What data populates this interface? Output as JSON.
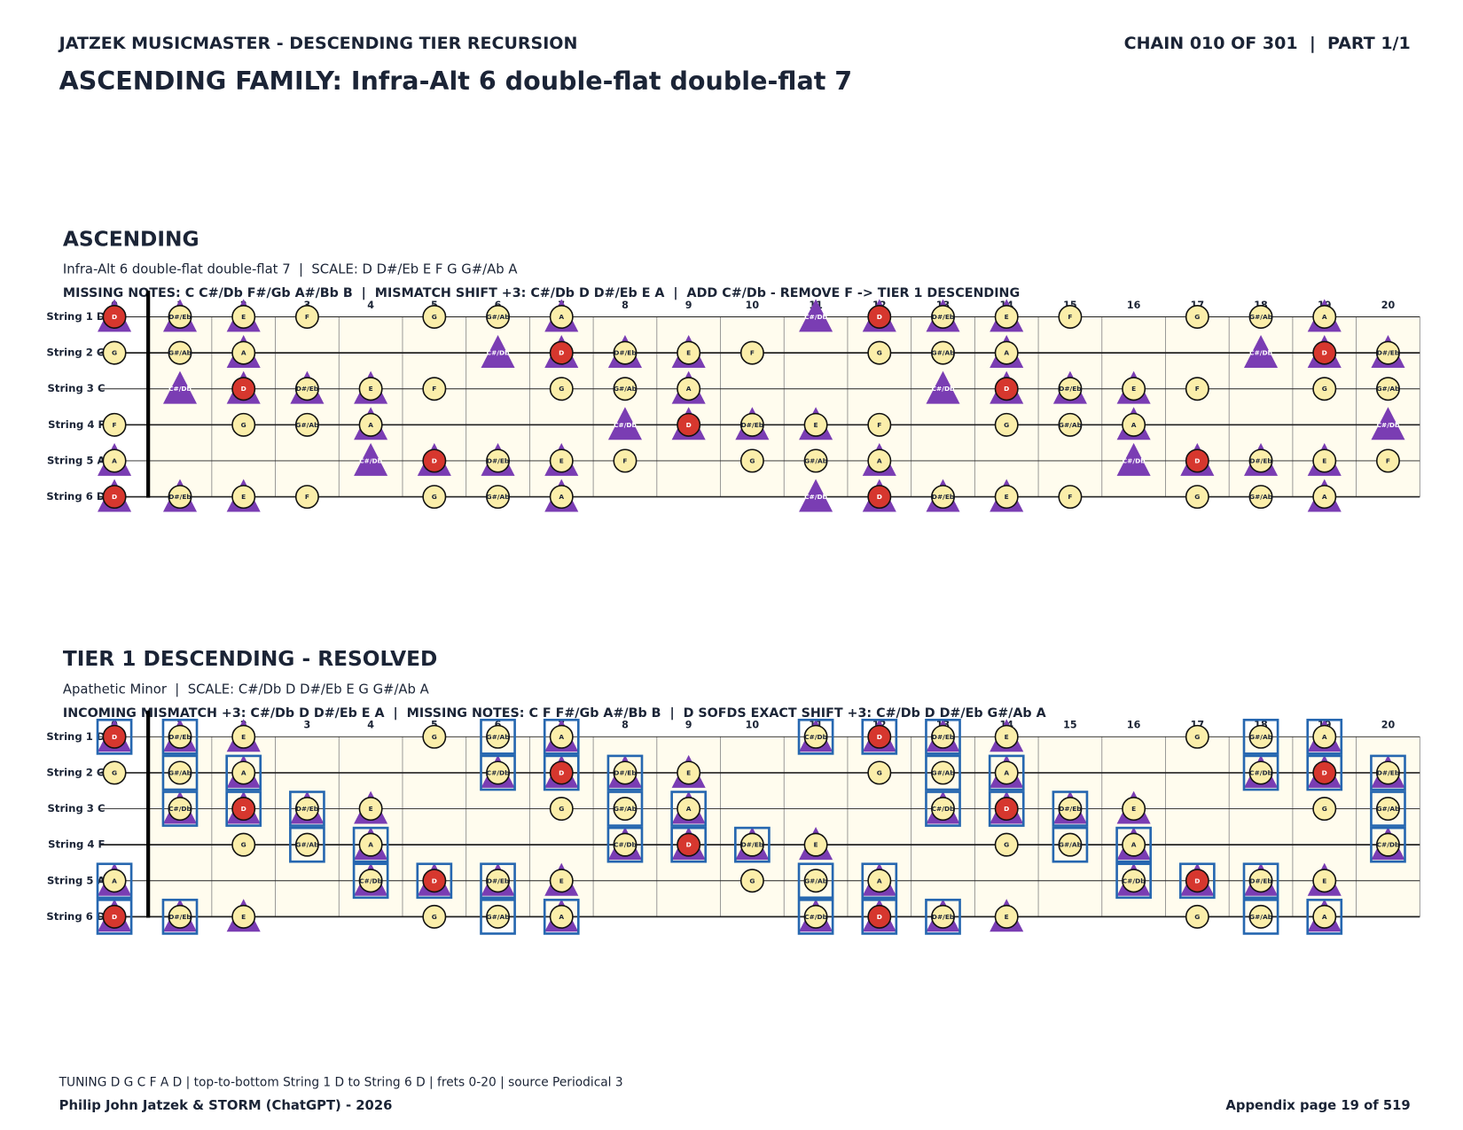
{
  "header": {
    "left": "JATZEK MUSICMASTER - DESCENDING TIER RECURSION",
    "right": "CHAIN 010 OF 301  |  PART 1/1",
    "title": "ASCENDING FAMILY: Infra-Alt 6 double-flat double-flat 7"
  },
  "sections": [
    {
      "title": "ASCENDING",
      "subtitle": "Infra-Alt 6 double-flat double-flat 7  |  SCALE: D D#/Eb E F G G#/Ab A",
      "info": "MISSING NOTES: C C#/Db F#/Gb A#/Bb B  |  MISMATCH SHIFT +3: C#/Db D D#/Eb E A  |  ADD C#/Db - REMOVE F -> TIER 1 DESCENDING",
      "frets": [
        0,
        1,
        2,
        3,
        4,
        5,
        6,
        7,
        8,
        9,
        10,
        11,
        12,
        13,
        14,
        15,
        16,
        17,
        18,
        19,
        20
      ],
      "strings": [
        {
          "label": "String 1 D",
          "notes": [
            "D",
            "D#/Eb",
            "E",
            "F",
            null,
            "G",
            "G#/Ab",
            "A",
            null,
            null,
            null,
            "C#/Db",
            "D",
            "D#/Eb",
            "E",
            "F",
            null,
            "G",
            "G#/Ab",
            "A",
            null
          ],
          "marks": [
            "rt",
            "ct",
            "ct",
            "c",
            null,
            "c",
            "c",
            "ct",
            null,
            null,
            null,
            "t",
            "rt",
            "ct",
            "ct",
            "c",
            null,
            "c",
            "c",
            "ct",
            null
          ]
        },
        {
          "label": "String 2 G",
          "notes": [
            "G",
            "G#/Ab",
            "A",
            null,
            null,
            null,
            "C#/Db",
            "D",
            "D#/Eb",
            "E",
            "F",
            null,
            "G",
            "G#/Ab",
            "A",
            null,
            null,
            null,
            "C#/Db",
            "D",
            "D#/Eb"
          ],
          "marks": [
            "c",
            "c",
            "ct",
            null,
            null,
            null,
            "t",
            "rt",
            "ct",
            "ct",
            "c",
            null,
            "c",
            "c",
            "ct",
            null,
            null,
            null,
            "t",
            "rt",
            "ct"
          ]
        },
        {
          "label": "String 3 C",
          "notes": [
            null,
            "C#/Db",
            "D",
            "D#/Eb",
            "E",
            "F",
            null,
            "G",
            "G#/Ab",
            "A",
            null,
            null,
            null,
            "C#/Db",
            "D",
            "D#/Eb",
            "E",
            "F",
            null,
            "G",
            "G#/Ab"
          ],
          "marks": [
            null,
            "t",
            "rt",
            "ct",
            "ct",
            "c",
            null,
            "c",
            "c",
            "ct",
            null,
            null,
            null,
            "t",
            "rt",
            "ct",
            "ct",
            "c",
            null,
            "c",
            "c"
          ]
        },
        {
          "label": "String 4 F",
          "notes": [
            "F",
            null,
            "G",
            "G#/Ab",
            "A",
            null,
            null,
            null,
            "C#/Db",
            "D",
            "D#/Eb",
            "E",
            "F",
            null,
            "G",
            "G#/Ab",
            "A",
            null,
            null,
            null,
            "C#/Db"
          ],
          "marks": [
            "c",
            null,
            "c",
            "c",
            "ct",
            null,
            null,
            null,
            "t",
            "rt",
            "ct",
            "ct",
            "c",
            null,
            "c",
            "c",
            "ct",
            null,
            null,
            null,
            "t"
          ]
        },
        {
          "label": "String 5 A",
          "notes": [
            "A",
            null,
            null,
            null,
            "C#/Db",
            "D",
            "D#/Eb",
            "E",
            "F",
            null,
            "G",
            "G#/Ab",
            "A",
            null,
            null,
            null,
            "C#/Db",
            "D",
            "D#/Eb",
            "E",
            "F"
          ],
          "marks": [
            "ct",
            null,
            null,
            null,
            "t",
            "rt",
            "ct",
            "ct",
            "c",
            null,
            "c",
            "c",
            "ct",
            null,
            null,
            null,
            "t",
            "rt",
            "ct",
            "ct",
            "c"
          ]
        },
        {
          "label": "String 6 D",
          "notes": [
            "D",
            "D#/Eb",
            "E",
            "F",
            null,
            "G",
            "G#/Ab",
            "A",
            null,
            null,
            null,
            "C#/Db",
            "D",
            "D#/Eb",
            "E",
            "F",
            null,
            "G",
            "G#/Ab",
            "A",
            null
          ],
          "marks": [
            "rt",
            "ct",
            "ct",
            "c",
            null,
            "c",
            "c",
            "ct",
            null,
            null,
            null,
            "t",
            "rt",
            "ct",
            "ct",
            "c",
            null,
            "c",
            "c",
            "ct",
            null
          ]
        }
      ]
    },
    {
      "title": "TIER 1 DESCENDING - RESOLVED",
      "subtitle": "Apathetic Minor  |  SCALE: C#/Db D D#/Eb E G G#/Ab A",
      "info": "INCOMING MISMATCH +3: C#/Db D D#/Eb E A  |  MISSING NOTES: C F F#/Gb A#/Bb B  |  D SOFDS EXACT SHIFT +3: C#/Db D D#/Eb G#/Ab A",
      "frets": [
        0,
        1,
        2,
        3,
        4,
        5,
        6,
        7,
        8,
        9,
        10,
        11,
        12,
        13,
        14,
        15,
        16,
        17,
        18,
        19,
        20
      ],
      "strings": [
        {
          "label": "String 1 D",
          "notes": [
            "D",
            "D#/Eb",
            "E",
            null,
            null,
            "G",
            "G#/Ab",
            "A",
            null,
            null,
            null,
            "C#/Db",
            "D",
            "D#/Eb",
            "E",
            null,
            null,
            "G",
            "G#/Ab",
            "A",
            null
          ],
          "marks": [
            "rtb",
            "ctb",
            "ct",
            null,
            null,
            "c",
            "cb",
            "ctb",
            null,
            null,
            null,
            "ctb",
            "rtb",
            "ctb",
            "ct",
            null,
            null,
            "c",
            "cb",
            "ctb",
            null
          ]
        },
        {
          "label": "String 2 G",
          "notes": [
            "G",
            "G#/Ab",
            "A",
            null,
            null,
            null,
            "C#/Db",
            "D",
            "D#/Eb",
            "E",
            null,
            null,
            "G",
            "G#/Ab",
            "A",
            null,
            null,
            null,
            "C#/Db",
            "D",
            "D#/Eb"
          ],
          "marks": [
            "c",
            "cb",
            "ctb",
            null,
            null,
            null,
            "ctb",
            "rtb",
            "ctb",
            "ct",
            null,
            null,
            "c",
            "cb",
            "ctb",
            null,
            null,
            null,
            "ctb",
            "rtb",
            "ctb"
          ]
        },
        {
          "label": "String 3 C",
          "notes": [
            null,
            "C#/Db",
            "D",
            "D#/Eb",
            "E",
            null,
            null,
            "G",
            "G#/Ab",
            "A",
            null,
            null,
            null,
            "C#/Db",
            "D",
            "D#/Eb",
            "E",
            null,
            null,
            "G",
            "G#/Ab"
          ],
          "marks": [
            null,
            "ctb",
            "rtb",
            "ctb",
            "ct",
            null,
            null,
            "c",
            "cb",
            "ctb",
            null,
            null,
            null,
            "ctb",
            "rtb",
            "ctb",
            "ct",
            null,
            null,
            "c",
            "cb"
          ]
        },
        {
          "label": "String 4 F",
          "notes": [
            null,
            null,
            "G",
            "G#/Ab",
            "A",
            null,
            null,
            null,
            "C#/Db",
            "D",
            "D#/Eb",
            "E",
            null,
            null,
            "G",
            "G#/Ab",
            "A",
            null,
            null,
            null,
            "C#/Db"
          ],
          "marks": [
            null,
            null,
            "c",
            "cb",
            "ctb",
            null,
            null,
            null,
            "ctb",
            "rtb",
            "ctb",
            "ct",
            null,
            null,
            "c",
            "cb",
            "ctb",
            null,
            null,
            null,
            "ctb"
          ]
        },
        {
          "label": "String 5 A",
          "notes": [
            "A",
            null,
            null,
            null,
            "C#/Db",
            "D",
            "D#/Eb",
            "E",
            null,
            null,
            "G",
            "G#/Ab",
            "A",
            null,
            null,
            null,
            "C#/Db",
            "D",
            "D#/Eb",
            "E",
            null
          ],
          "marks": [
            "ctb",
            null,
            null,
            null,
            "ctb",
            "rtb",
            "ctb",
            "ct",
            null,
            null,
            "c",
            "cb",
            "ctb",
            null,
            null,
            null,
            "ctb",
            "rtb",
            "ctb",
            "ct",
            null
          ]
        },
        {
          "label": "String 6 D",
          "notes": [
            "D",
            "D#/Eb",
            "E",
            null,
            null,
            "G",
            "G#/Ab",
            "A",
            null,
            null,
            null,
            "C#/Db",
            "D",
            "D#/Eb",
            "E",
            null,
            null,
            "G",
            "G#/Ab",
            "A",
            null
          ],
          "marks": [
            "rtb",
            "ctb",
            "ct",
            null,
            null,
            "c",
            "cb",
            "ctb",
            null,
            null,
            null,
            "ctb",
            "rtb",
            "ctb",
            "ct",
            null,
            null,
            "c",
            "cb",
            "ctb",
            null
          ]
        }
      ]
    }
  ],
  "footer": {
    "note": "TUNING D G C F A D | top-to-bottom String 1 D to String 6 D | frets 0-20 | source Periodical 3",
    "author": "Philip John Jatzek & STORM (ChatGPT) - 2026",
    "page": "Appendix page 19 of 519"
  }
}
